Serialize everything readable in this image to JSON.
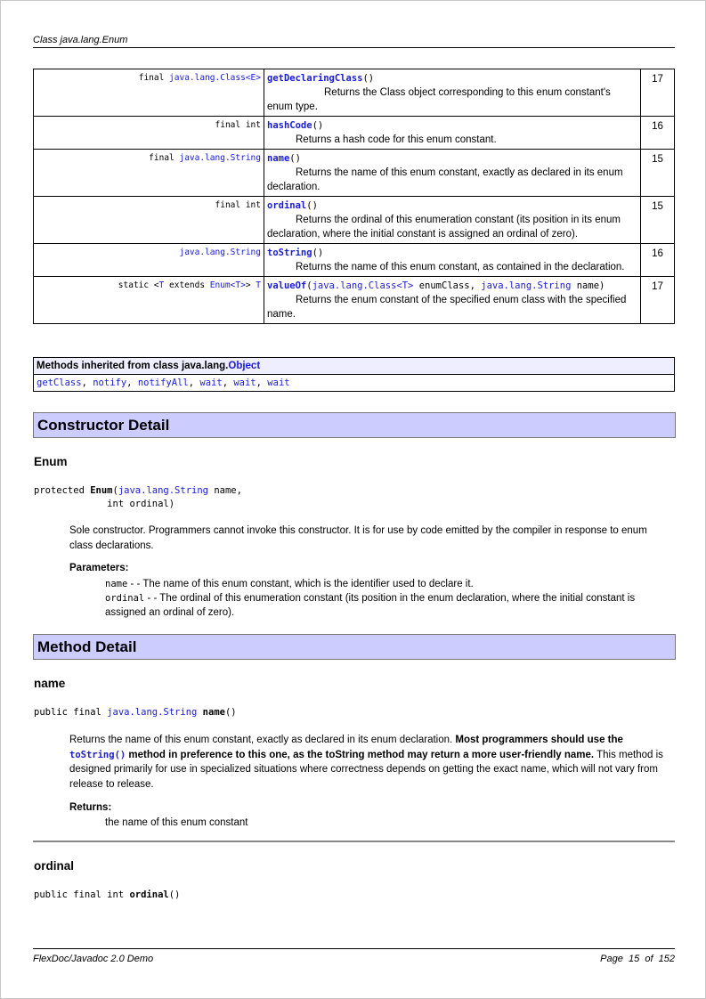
{
  "header": {
    "title": "Class java.lang.Enum"
  },
  "summary": [
    {
      "type_pre": "final ",
      "type_link": "java.lang.Class<E>",
      "type_post": "",
      "name": "getDeclaringClass",
      "sig_rest": "()",
      "desc": "Returns the Class object corresponding to this enum constant's enum type.",
      "page": "17"
    },
    {
      "type_pre": "final int",
      "type_link": "",
      "type_post": "",
      "name": "hashCode",
      "sig_rest": "()",
      "desc": "Returns a hash code for this enum constant.",
      "page": "16"
    },
    {
      "type_pre": "final ",
      "type_link": "java.lang.String",
      "type_post": "",
      "name": "name",
      "sig_rest": "()",
      "desc": "Returns the name of this enum constant, exactly as declared in its enum declaration.",
      "page": "15"
    },
    {
      "type_pre": "final int",
      "type_link": "",
      "type_post": "",
      "name": "ordinal",
      "sig_rest": "()",
      "desc": "Returns the ordinal of this enumeration constant (its position in its enum declaration, where the initial constant is assigned an ordinal of zero).",
      "page": "15"
    },
    {
      "type_pre": "",
      "type_link": "java.lang.String",
      "type_post": "",
      "name": "toString",
      "sig_rest": "()",
      "desc": "Returns the name of this enum constant, as contained in the declaration.",
      "page": "16"
    },
    {
      "type_pre": "static <",
      "type_link": "T",
      "type_mid": " extends ",
      "type_link2": "Enum<T>",
      "type_post": "> ",
      "type_link3": "T",
      "name": "valueOf",
      "sig_open": "(",
      "p1": "java.lang.Class<T>",
      "p1n": " enumClass, ",
      "p2": "java.lang.String",
      "p2n": " name)",
      "desc": "Returns the enum constant of the specified enum class with the specified name.",
      "page": "17"
    }
  ],
  "inherited": {
    "heading_pre": "Methods inherited from class java.lang.",
    "heading_link": "Object",
    "methods": [
      "getClass",
      "notify",
      "notifyAll",
      "wait",
      "wait",
      "wait"
    ],
    "sep": ", "
  },
  "constructor_detail": {
    "title": "Constructor Detail",
    "name": "Enum",
    "sig1": "protected ",
    "sig_name": "Enum",
    "sig_open": "(",
    "sig_link": "java.lang.String",
    "sig_rest1": " name,",
    "sig_line2": "             int ordinal)",
    "desc": "Sole constructor. Programmers cannot invoke this constructor. It is for use by code emitted by the compiler in response to enum class declarations.",
    "params_label": "Parameters:",
    "params": [
      {
        "name": "name",
        "text": " - - The name of this enum constant, which is the identifier used to declare it."
      },
      {
        "name": "ordinal",
        "text": " - - The ordinal of this enumeration constant (its position in the enum declaration, where the initial constant is assigned an ordinal of zero)."
      }
    ]
  },
  "method_detail": {
    "title": "Method Detail",
    "name": {
      "heading": "name",
      "sig_pre": "public final ",
      "sig_link": "java.lang.String",
      "sig_sp": " ",
      "sig_name": "name",
      "sig_post": "()",
      "desc1": "Returns the name of this enum constant, exactly as declared in its enum declaration. ",
      "desc_bold1": "Most programmers should use the ",
      "desc_link": "toString()",
      "desc_bold2": " method in preference to this one, as the toString method may return a more user-friendly name.",
      "desc2": " This method is designed primarily for use in specialized situations where correctness depends on getting the exact name, which will not vary from release to release.",
      "returns_label": "Returns:",
      "returns": "the name of this enum constant"
    },
    "ordinal": {
      "heading": "ordinal",
      "sig_pre": "public final int ",
      "sig_name": "ordinal",
      "sig_post": "()"
    }
  },
  "footer": {
    "left": "FlexDoc/Javadoc 2.0 Demo",
    "page_label": "Page",
    "page": "15",
    "of": "of",
    "total": "152"
  }
}
